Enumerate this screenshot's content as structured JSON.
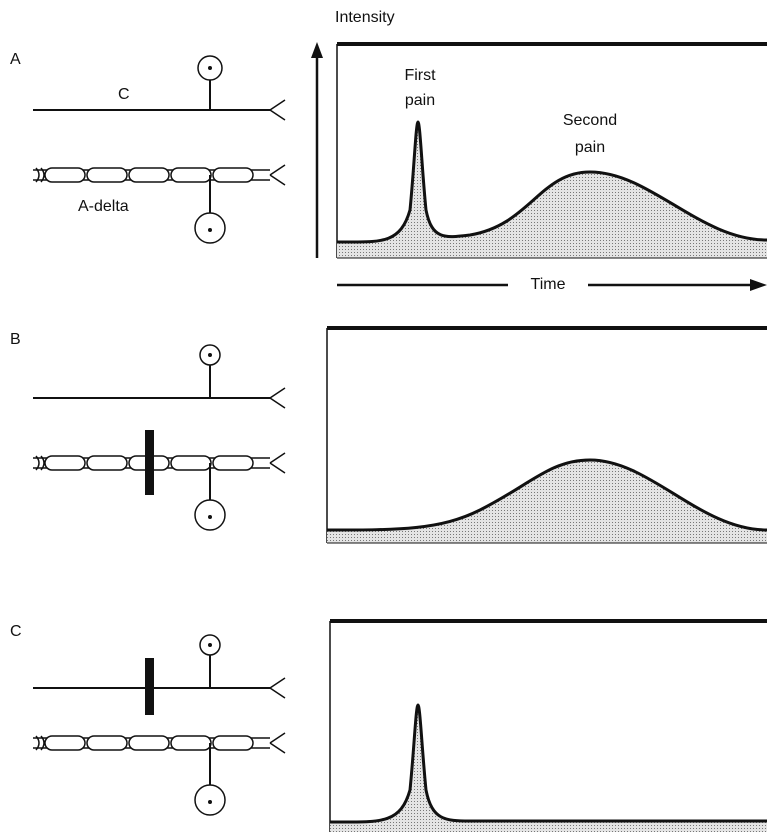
{
  "axis": {
    "y_label": "Intensity",
    "x_label": "Time"
  },
  "panels": [
    {
      "label": "A",
      "fiber_labels": {
        "c": "C",
        "a_delta": "A-delta"
      },
      "annotations": {
        "first": [
          "First",
          "pain"
        ],
        "second": [
          "Second",
          "pain"
        ]
      }
    },
    {
      "label": "B"
    },
    {
      "label": "C"
    }
  ]
}
